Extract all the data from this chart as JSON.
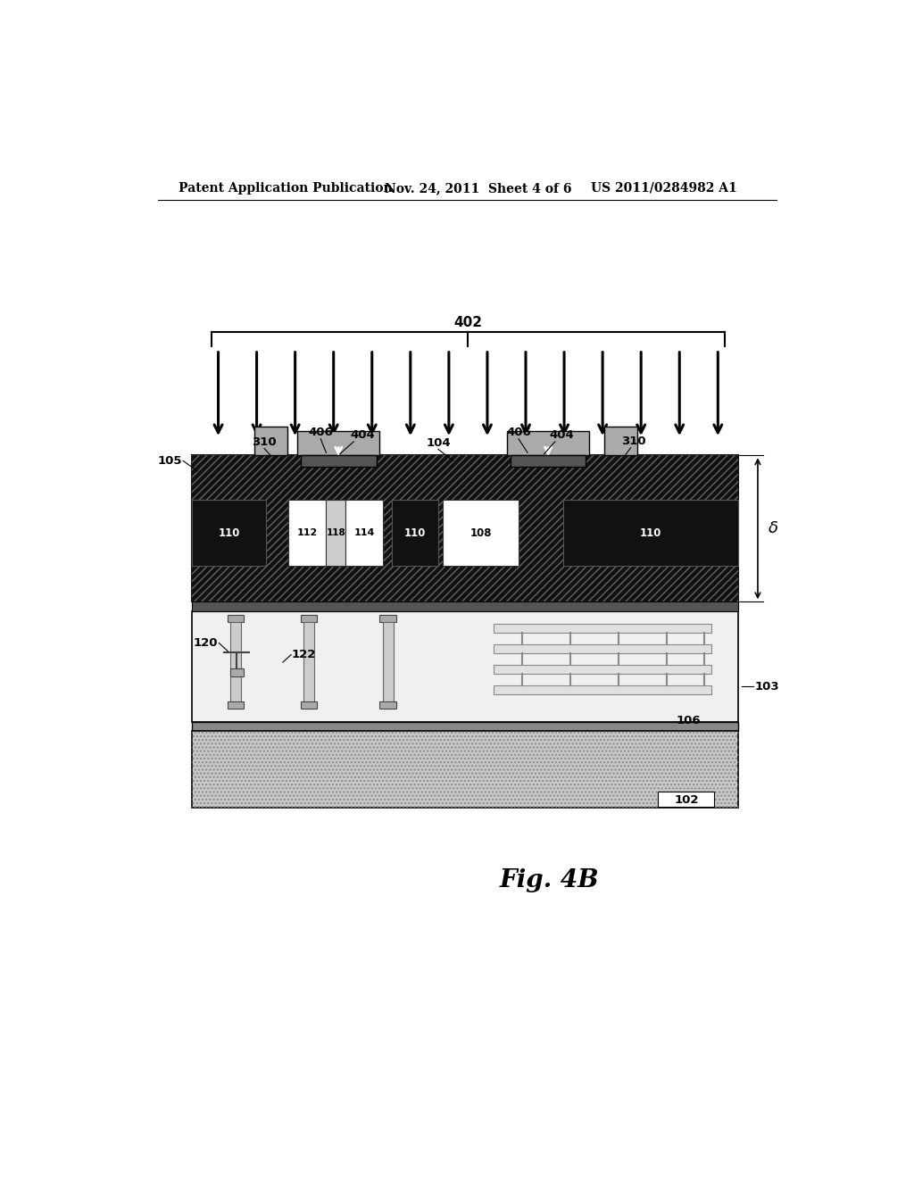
{
  "header_left": "Patent Application Publication",
  "header_mid": "Nov. 24, 2011  Sheet 4 of 6",
  "header_right": "US 2011/0284982 A1",
  "fig_label": "Fig. 4B",
  "label_402": "402",
  "label_105": "105",
  "label_310a": "310",
  "label_406a": "406",
  "label_404a": "404",
  "label_104": "104",
  "label_406b": "406",
  "label_404b": "404",
  "label_310b": "310",
  "label_110a": "110",
  "label_112": "112",
  "label_118": "118",
  "label_114": "114",
  "label_110b": "110",
  "label_108": "108",
  "label_110c": "110",
  "label_120": "120",
  "label_122": "122",
  "label_103": "103",
  "label_106": "106",
  "label_102": "102",
  "label_delta": "δ",
  "bg_color": "#ffffff"
}
